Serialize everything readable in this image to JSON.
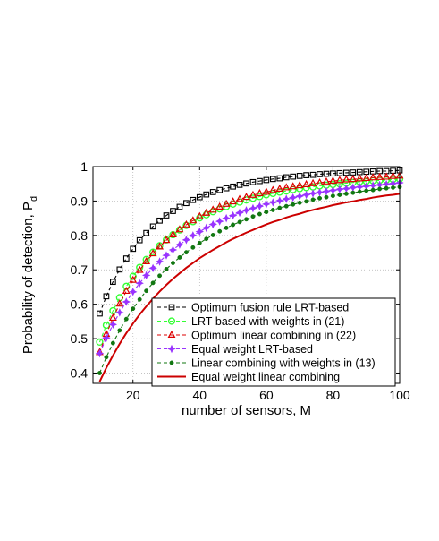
{
  "chart_data": {
    "type": "line",
    "xlabel": "number of sensors, M",
    "ylabel_main": "Probability of detection, P",
    "ylabel_sub": "d",
    "xlim": [
      8,
      100
    ],
    "ylim": [
      0.37,
      1.0
    ],
    "xticks": [
      20,
      40,
      60,
      80,
      100
    ],
    "xtick_labels": [
      "20",
      "40",
      "60",
      "80",
      "100"
    ],
    "yticks": [
      0.4,
      0.5,
      0.6,
      0.7,
      0.8,
      0.9,
      1.0
    ],
    "ytick_labels": [
      "0.4",
      "0.5",
      "0.6",
      "0.7",
      "0.8",
      "0.9",
      "1"
    ],
    "grid": true,
    "legend_position": "bottom-right",
    "x": [
      10,
      12,
      14,
      16,
      18,
      20,
      22,
      24,
      26,
      28,
      30,
      32,
      34,
      36,
      38,
      40,
      42,
      44,
      46,
      48,
      50,
      52,
      54,
      56,
      58,
      60,
      62,
      64,
      66,
      68,
      70,
      72,
      74,
      76,
      78,
      80,
      82,
      84,
      86,
      88,
      90,
      92,
      94,
      96,
      98,
      100
    ],
    "series": [
      {
        "name": "Optimum fusion rule LRT-based",
        "color": "#000000",
        "line": "dashed",
        "marker": "square",
        "values": [
          0.573,
          0.623,
          0.665,
          0.701,
          0.733,
          0.761,
          0.786,
          0.807,
          0.826,
          0.843,
          0.858,
          0.871,
          0.883,
          0.894,
          0.903,
          0.911,
          0.919,
          0.926,
          0.932,
          0.937,
          0.942,
          0.947,
          0.951,
          0.955,
          0.958,
          0.961,
          0.964,
          0.966,
          0.969,
          0.971,
          0.973,
          0.975,
          0.976,
          0.978,
          0.979,
          0.98,
          0.981,
          0.982,
          0.983,
          0.984,
          0.985,
          0.986,
          0.987,
          0.987,
          0.988,
          0.989
        ]
      },
      {
        "name": "LRT-based with weights in (21)",
        "color": "#33ff33",
        "line": "dashed",
        "marker": "circle",
        "values": [
          0.49,
          0.539,
          0.581,
          0.619,
          0.652,
          0.681,
          0.707,
          0.73,
          0.751,
          0.77,
          0.787,
          0.802,
          0.816,
          0.829,
          0.84,
          0.851,
          0.86,
          0.869,
          0.877,
          0.884,
          0.891,
          0.897,
          0.903,
          0.908,
          0.913,
          0.918,
          0.922,
          0.926,
          0.929,
          0.933,
          0.936,
          0.939,
          0.941,
          0.944,
          0.946,
          0.948,
          0.95,
          0.952,
          0.954,
          0.956,
          0.957,
          0.959,
          0.96,
          0.961,
          0.963,
          0.964
        ]
      },
      {
        "name": "Optimum linear combining in (22)",
        "color": "#dd0000",
        "line": "dashed",
        "marker": "triangle",
        "values": [
          0.46,
          0.513,
          0.56,
          0.601,
          0.638,
          0.67,
          0.699,
          0.724,
          0.747,
          0.767,
          0.786,
          0.802,
          0.817,
          0.831,
          0.843,
          0.855,
          0.865,
          0.874,
          0.883,
          0.891,
          0.898,
          0.905,
          0.911,
          0.917,
          0.922,
          0.926,
          0.931,
          0.935,
          0.939,
          0.942,
          0.945,
          0.948,
          0.951,
          0.953,
          0.956,
          0.958,
          0.96,
          0.962,
          0.963,
          0.965,
          0.966,
          0.968,
          0.969,
          0.97,
          0.972,
          0.973
        ]
      },
      {
        "name": "Equal weight LRT-based",
        "color": "#9933ff",
        "line": "dashed",
        "marker": "star",
        "values": [
          0.457,
          0.502,
          0.541,
          0.576,
          0.607,
          0.636,
          0.661,
          0.684,
          0.705,
          0.724,
          0.742,
          0.758,
          0.773,
          0.787,
          0.8,
          0.811,
          0.822,
          0.832,
          0.841,
          0.85,
          0.858,
          0.866,
          0.873,
          0.879,
          0.885,
          0.891,
          0.896,
          0.901,
          0.906,
          0.91,
          0.914,
          0.918,
          0.922,
          0.925,
          0.928,
          0.931,
          0.934,
          0.936,
          0.939,
          0.941,
          0.943,
          0.945,
          0.947,
          0.949,
          0.951,
          0.953
        ]
      },
      {
        "name": "Linear combining with weights in (13)",
        "color": "#117711",
        "line": "dashed",
        "marker": "dot",
        "values": [
          0.4,
          0.446,
          0.487,
          0.524,
          0.557,
          0.587,
          0.614,
          0.639,
          0.662,
          0.683,
          0.702,
          0.72,
          0.736,
          0.751,
          0.765,
          0.778,
          0.79,
          0.801,
          0.812,
          0.822,
          0.831,
          0.839,
          0.847,
          0.855,
          0.862,
          0.868,
          0.874,
          0.88,
          0.885,
          0.89,
          0.895,
          0.899,
          0.904,
          0.908,
          0.911,
          0.915,
          0.918,
          0.921,
          0.924,
          0.927,
          0.93,
          0.932,
          0.935,
          0.937,
          0.939,
          0.941
        ]
      },
      {
        "name": "Equal weight linear combining",
        "color": "#cc0000",
        "line": "solid",
        "marker": "none",
        "values": [
          0.375,
          0.415,
          0.451,
          0.485,
          0.516,
          0.544,
          0.57,
          0.594,
          0.616,
          0.637,
          0.656,
          0.674,
          0.69,
          0.706,
          0.72,
          0.734,
          0.746,
          0.758,
          0.769,
          0.78,
          0.79,
          0.799,
          0.808,
          0.816,
          0.824,
          0.832,
          0.839,
          0.845,
          0.852,
          0.858,
          0.863,
          0.869,
          0.874,
          0.879,
          0.883,
          0.888,
          0.892,
          0.896,
          0.899,
          0.903,
          0.906,
          0.91,
          0.913,
          0.916,
          0.918,
          0.921
        ]
      }
    ]
  }
}
